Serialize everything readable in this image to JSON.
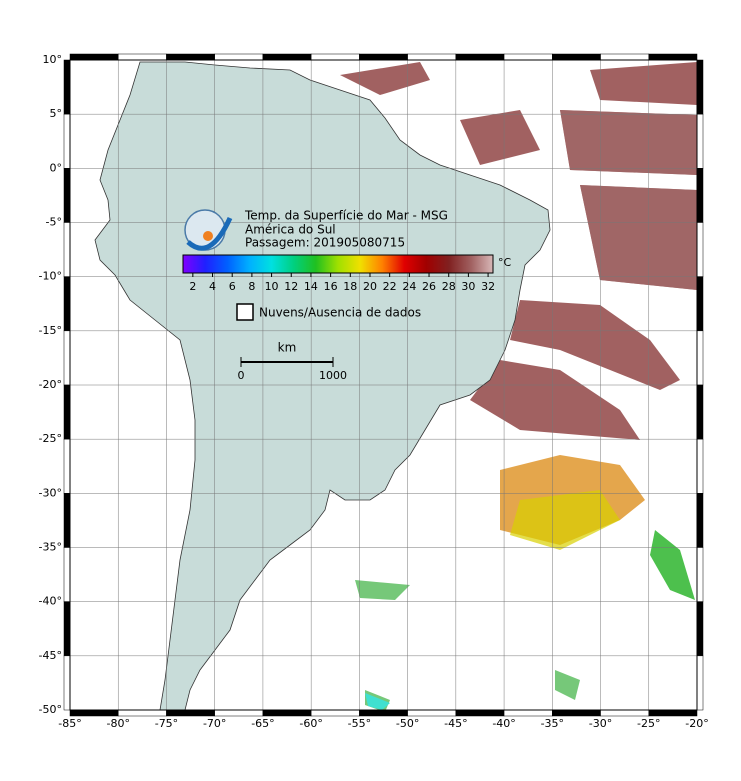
{
  "map": {
    "title": "Temp. da Superfície do Mar - MSG",
    "region": "América do Sul",
    "pass": "Passagem: 201905080715",
    "xlim": [
      -85,
      -20
    ],
    "ylim": [
      -50,
      10
    ],
    "xticks": [
      {
        "value": -85,
        "label": "-85°"
      },
      {
        "value": -80,
        "label": "-80°"
      },
      {
        "value": -75,
        "label": "-75°"
      },
      {
        "value": -70,
        "label": "-70°"
      },
      {
        "value": -65,
        "label": "-65°"
      },
      {
        "value": -60,
        "label": "-60°"
      },
      {
        "value": -55,
        "label": "-55°"
      },
      {
        "value": -50,
        "label": "-50°"
      },
      {
        "value": -45,
        "label": "-45°"
      },
      {
        "value": -40,
        "label": "-40°"
      },
      {
        "value": -35,
        "label": "-35°"
      },
      {
        "value": -30,
        "label": "-30°"
      },
      {
        "value": -25,
        "label": "-25°"
      },
      {
        "value": -20,
        "label": "-20°"
      }
    ],
    "yticks": [
      {
        "value": 10,
        "label": "10°"
      },
      {
        "value": 5,
        "label": "5°"
      },
      {
        "value": 0,
        "label": "0°"
      },
      {
        "value": -5,
        "label": "-5°"
      },
      {
        "value": -10,
        "label": "-10°"
      },
      {
        "value": -15,
        "label": "-15°"
      },
      {
        "value": -20,
        "label": "-20°"
      },
      {
        "value": -25,
        "label": "-25°"
      },
      {
        "value": -30,
        "label": "-30°"
      },
      {
        "value": -35,
        "label": "-35°"
      },
      {
        "value": -40,
        "label": "-40°"
      },
      {
        "value": -45,
        "label": "-45°"
      },
      {
        "value": -50,
        "label": "-50°"
      }
    ],
    "colorbar": {
      "lim": [
        1,
        32.5
      ],
      "ticks": [
        2,
        4,
        6,
        8,
        10,
        12,
        14,
        16,
        18,
        20,
        22,
        24,
        26,
        28,
        30,
        32
      ],
      "unit": "°C",
      "colors": [
        "#8000ff",
        "#2020ff",
        "#0060ff",
        "#00b0ff",
        "#00e0e0",
        "#00d080",
        "#20c020",
        "#a0e000",
        "#f0e000",
        "#ff8000",
        "#e00000",
        "#a00000",
        "#802020",
        "#a06060",
        "#d8b8b8"
      ]
    },
    "legend": "Nuvens/Ausencia de dados",
    "scale": {
      "unit": "km",
      "labels": [
        0,
        1000
      ]
    }
  }
}
